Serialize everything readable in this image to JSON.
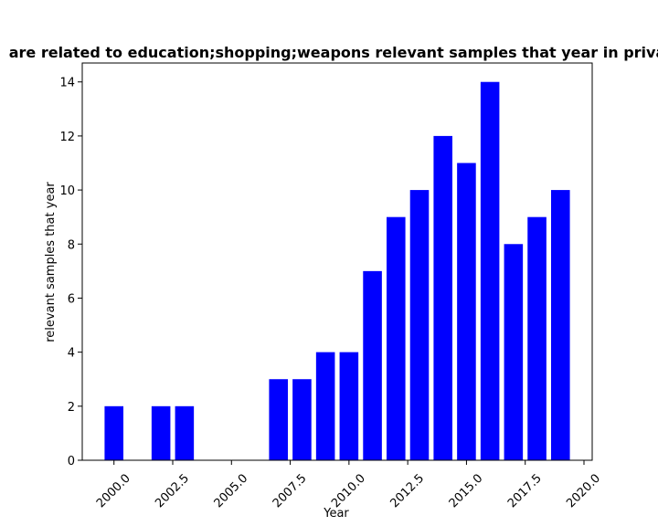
{
  "chart_data": {
    "type": "bar",
    "title": "are related to education;shopping;weapons relevant samples that year in priva",
    "xlabel": "Year",
    "ylabel": "relevant samples that year",
    "x": [
      2000,
      2002,
      2003,
      2007,
      2008,
      2009,
      2010,
      2011,
      2012,
      2013,
      2014,
      2015,
      2016,
      2017,
      2018,
      2019
    ],
    "values": [
      2,
      2,
      2,
      3,
      3,
      4,
      4,
      7,
      9,
      10,
      12,
      11,
      14,
      8,
      9,
      10
    ],
    "xlim": [
      1998.65,
      2020.35
    ],
    "ylim": [
      0,
      14.7
    ],
    "xticks": [
      2000.0,
      2002.5,
      2005.0,
      2007.5,
      2010.0,
      2012.5,
      2015.0,
      2017.5,
      2020.0
    ],
    "xtick_labels": [
      "2000.0",
      "2002.5",
      "2005.0",
      "2007.5",
      "2010.0",
      "2012.5",
      "2015.0",
      "2017.5",
      "2020.0"
    ],
    "yticks": [
      0,
      2,
      4,
      6,
      8,
      10,
      12,
      14
    ],
    "ytick_labels": [
      "0",
      "2",
      "4",
      "6",
      "8",
      "10",
      "12",
      "14"
    ],
    "bar_color": "#0000ff",
    "grid": false,
    "legend": "none"
  }
}
